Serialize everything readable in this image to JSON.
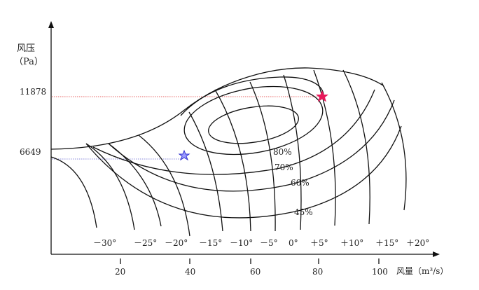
{
  "y_axis": {
    "label": "风压",
    "unit": "（Pa）",
    "marked_values": [
      "11878",
      "6649"
    ]
  },
  "x_axis": {
    "label": "风量（m³/s）",
    "ticks": [
      "20",
      "40",
      "60",
      "80",
      "100"
    ]
  },
  "blade_angles": [
    "－30°",
    "－25°",
    "－20°",
    "－15°",
    "－10°",
    "－5°",
    "0°",
    "＋5°",
    "＋10°",
    "＋15°",
    "＋20°"
  ],
  "efficiency_labels": [
    "80%",
    "70%",
    "60%",
    "45%"
  ],
  "markers": [
    {
      "name": "blue-star",
      "pressure": "6649",
      "color": "#4040e0"
    },
    {
      "name": "red-star",
      "pressure": "11878",
      "color": "#e8185a"
    }
  ],
  "colors": {
    "curves": "#111111",
    "red_guide": "#e03030",
    "blue_guide": "#6060d0"
  }
}
